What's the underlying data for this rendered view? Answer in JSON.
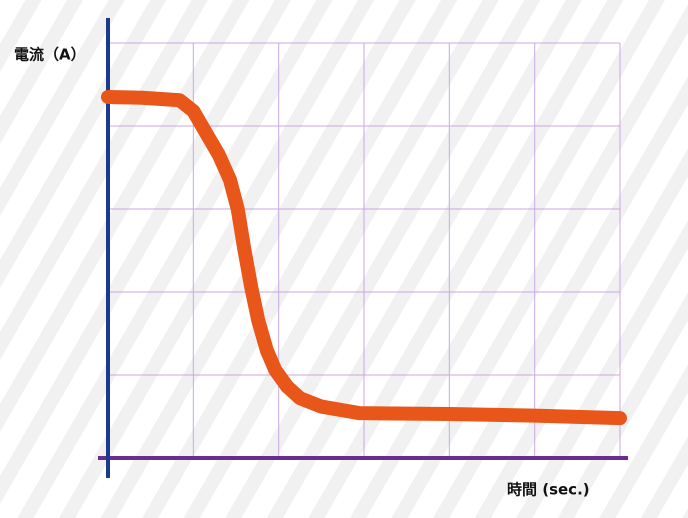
{
  "chart_data": {
    "type": "line",
    "y_label": "電流（A）",
    "x_label": "時間 (sec.)",
    "x": [
      0,
      0.4,
      0.84,
      1.0,
      1.13,
      1.3,
      1.43,
      1.52,
      1.6,
      1.68,
      1.76,
      1.86,
      1.96,
      2.1,
      2.25,
      2.5,
      2.95,
      4.0,
      5.0,
      6.0
    ],
    "series": [
      {
        "name": "電流",
        "color": "#e8561a",
        "values": [
          4.35,
          4.34,
          4.31,
          4.18,
          3.95,
          3.65,
          3.35,
          3.0,
          2.5,
          2.05,
          1.66,
          1.3,
          1.06,
          0.86,
          0.72,
          0.62,
          0.54,
          0.53,
          0.51,
          0.48
        ]
      }
    ],
    "xlim": [
      0,
      6
    ],
    "ylim": [
      0,
      5
    ],
    "xticks": [
      1,
      2,
      3,
      4,
      5,
      6
    ],
    "yticks": [
      1,
      2,
      3,
      4,
      5
    ],
    "grid": true,
    "grid_color": "#c9a8e0",
    "y_axis_color": "#1a3a8f",
    "x_axis_color": "#6a2c91"
  }
}
